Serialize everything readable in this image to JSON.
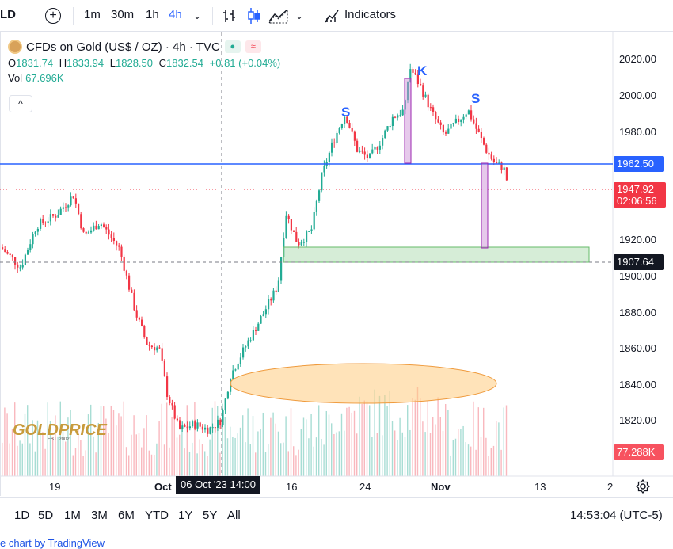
{
  "toolbar": {
    "symbol_fragment": "LD",
    "add_icon": "plus-circle-icon",
    "intervals": [
      {
        "label": "1m",
        "active": false
      },
      {
        "label": "30m",
        "active": false
      },
      {
        "label": "1h",
        "active": false
      },
      {
        "label": "4h",
        "active": true
      }
    ],
    "indicators_label": "Indicators"
  },
  "legend": {
    "title": "CFDs on Gold (US$ / OZ) · 4h · TVC",
    "ohlc": {
      "o_label": "O",
      "o": "1831.74",
      "h_label": "H",
      "h": "1833.94",
      "l_label": "L",
      "l": "1828.50",
      "c_label": "C",
      "c": "1832.54",
      "change": "+0.81 (+0.04%)"
    },
    "vol_label": "Vol",
    "vol_value": "67.696K",
    "collapse_label": "^"
  },
  "price_axis": {
    "labels": [
      "2020.00",
      "2000.00",
      "1980.00",
      "1920.00",
      "1900.00",
      "1880.00",
      "1860.00",
      "1840.00",
      "1820.00"
    ],
    "tags": {
      "level": "1962.50",
      "last_price": "1947.92",
      "countdown": "02:06:56",
      "crosshair": "1907.64",
      "volume": "77.288K"
    }
  },
  "time_axis": {
    "labels": [
      "19",
      "Oct",
      "16",
      "24",
      "Nov",
      "13",
      "2"
    ],
    "crosshair_label": "06 Oct '23   14:00"
  },
  "annotations": {
    "left_shoulder": "S",
    "head": "K",
    "right_shoulder": "S"
  },
  "watermark": {
    "brand": "GOLDPRICE",
    "est": "EST. 2002"
  },
  "range_bar": {
    "ranges": [
      "1D",
      "5D",
      "1M",
      "3M",
      "6M",
      "YTD",
      "1Y",
      "5Y",
      "All"
    ],
    "time": "14:53:04 (UTC-5)"
  },
  "credit": "e chart by TradingView",
  "colors": {
    "up": "#22ab94",
    "down": "#f23645",
    "level_line": "#2962ff",
    "zone": "#a5d6a7",
    "ellipse": "#ffcc80"
  }
}
